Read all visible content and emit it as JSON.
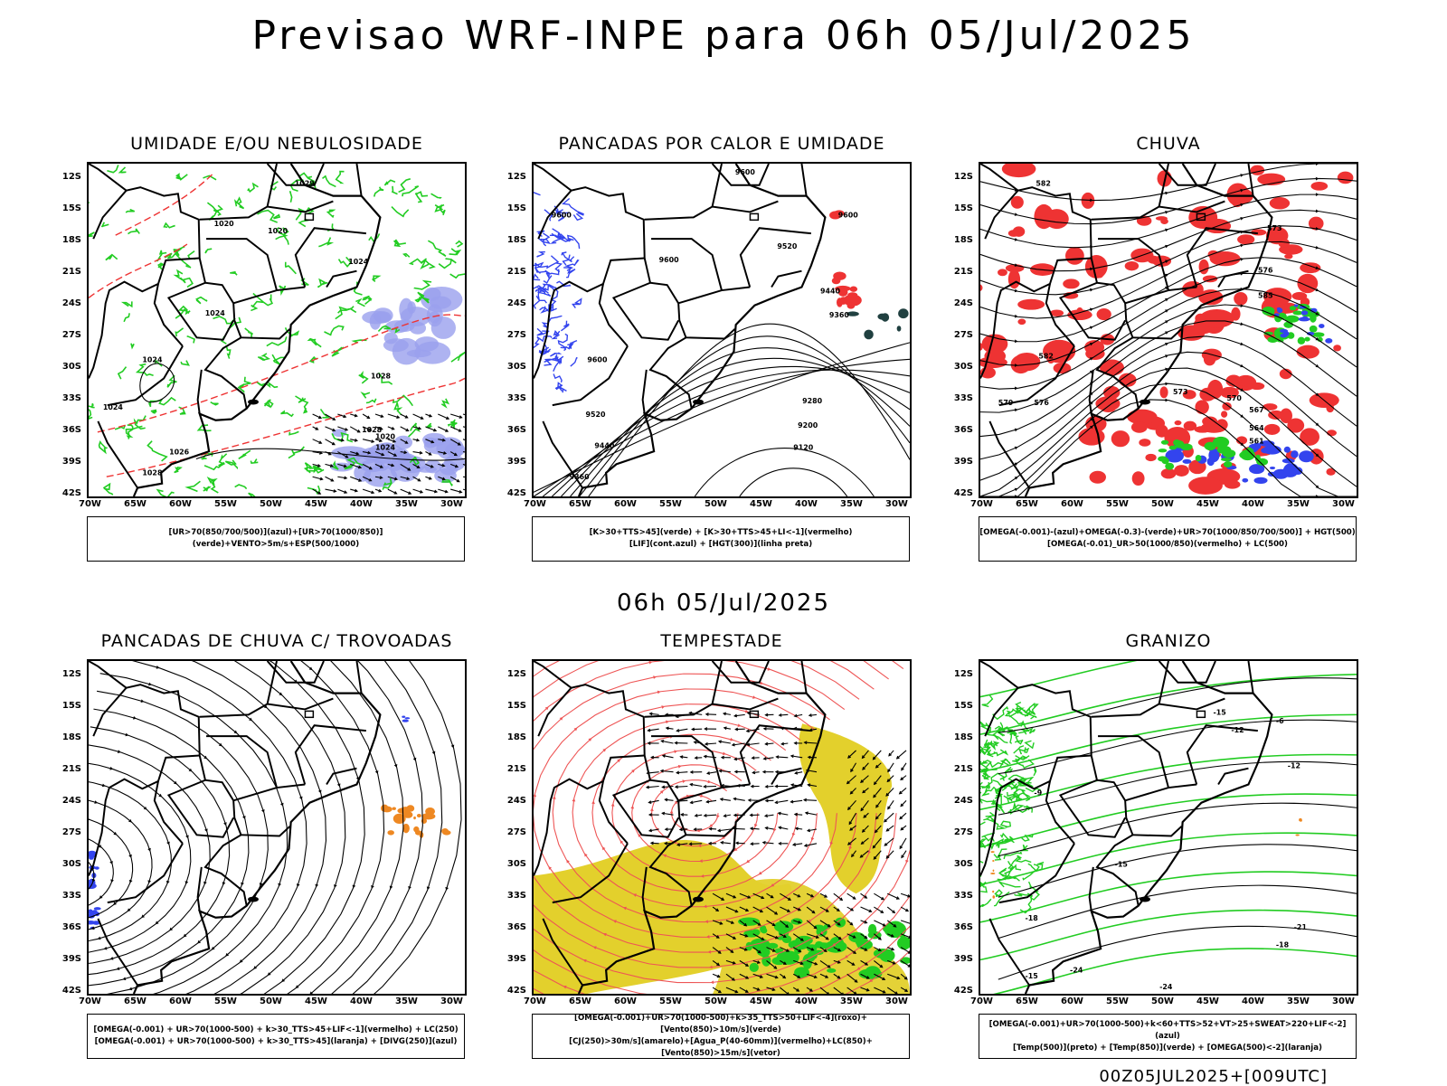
{
  "title": "Previsao WRF-INPE  para 06h 05/Jul/2025",
  "mid_timestamp": "06h 05/Jul/2025",
  "footer": "00Z05JUL2025+[009UTC]",
  "lat_labels": [
    "12S",
    "15S",
    "18S",
    "21S",
    "24S",
    "27S",
    "30S",
    "33S",
    "36S",
    "39S",
    "42S"
  ],
  "lon_labels": [
    "70W",
    "65W",
    "60W",
    "55W",
    "50W",
    "45W",
    "40W",
    "35W",
    "30W"
  ],
  "panels": [
    {
      "id": "umidade",
      "title": "UMIDADE E/OU NEBULOSIDADE",
      "legend": [
        "[UR>70(850/700/500)](azul)+[UR>70(1000/850)](verde)+VENTO>5m/s+ESP(500/1000)"
      ],
      "contour_labels": [
        "1029",
        "1020",
        "1020",
        "1024",
        "1024",
        "1024",
        "1028",
        "1024",
        "1028",
        "1024",
        "1020",
        "1026",
        "1028"
      ]
    },
    {
      "id": "pancadas-calor",
      "title": "PANCADAS POR CALOR E UMIDADE",
      "legend": [
        "[K>30+TTS>45](verde) + [K>30+TTS>45+LI<-1](vermelho)",
        "[LIF](cont.azul) + [HGT(300)](linha preta)"
      ],
      "contour_labels": [
        "9600",
        "9600",
        "9600",
        "9520",
        "9600",
        "9440",
        "9360",
        "9600",
        "9520",
        "9440",
        "9280",
        "9200",
        "9120",
        "9360"
      ]
    },
    {
      "id": "chuva",
      "title": "CHUVA",
      "legend": [
        "[OMEGA(-0.001)-(azul)+OMEGA(-0.3)-(verde)+UR>70(1000/850/700/500)] + HGT(500)",
        "[OMEGA(-0.01)_UR>50(1000/850)(vermelho) + LC(500)"
      ],
      "contour_labels": [
        "582",
        "573",
        "576",
        "585",
        "582",
        "579",
        "576",
        "573",
        "570",
        "567",
        "564",
        "561"
      ]
    },
    {
      "id": "trovoadas",
      "title": "PANCADAS DE CHUVA C/ TROVOADAS",
      "legend": [
        "[OMEGA(-0.001) + UR>70(1000-500) + k>30_TTS>45+LIF<-1](vermelho) + LC(250)",
        "[OMEGA(-0.001) + UR>70(1000-500) + k>30_TTS>45](laranja) + [DIVG(250)](azul)"
      ],
      "contour_labels": []
    },
    {
      "id": "tempestade",
      "title": "TEMPESTADE",
      "legend": [
        "[OMEGA(-0.001)+UR>70(1000-500)+k>35_TTS>50+LIF<-4](roxo)+[Vento(850)>10m/s](verde)",
        "[CJ(250)>30m/s](amarelo)+[Agua_P(40-60mm)](vermelho)+LC(850)+[Vento(850)>15m/s](vetor)"
      ],
      "contour_labels": []
    },
    {
      "id": "granizo",
      "title": "GRANIZO",
      "legend": [
        "[OMEGA(-0.001)+UR>70(1000-500)+k<60+TTS>52+VT>25+SWEAT>220+LIF<-2](azul)",
        "[Temp(500)](preto) + [Temp(850)](verde) + [OMEGA(500)<-2](laranja)"
      ],
      "contour_labels": [
        "-15",
        "-12",
        "-6",
        "-12",
        "-9",
        "-15",
        "-18",
        "-21",
        "-24",
        "-15",
        "-24",
        "-18"
      ]
    }
  ],
  "colors": {
    "green": "#22cc22",
    "red": "#ee3333",
    "blue": "#3344ee",
    "lavender": "#9aa0ee",
    "orange": "#ee8822",
    "yellow": "#e3d02c",
    "darkteal": "#204040",
    "salmon": "#ee5555"
  }
}
